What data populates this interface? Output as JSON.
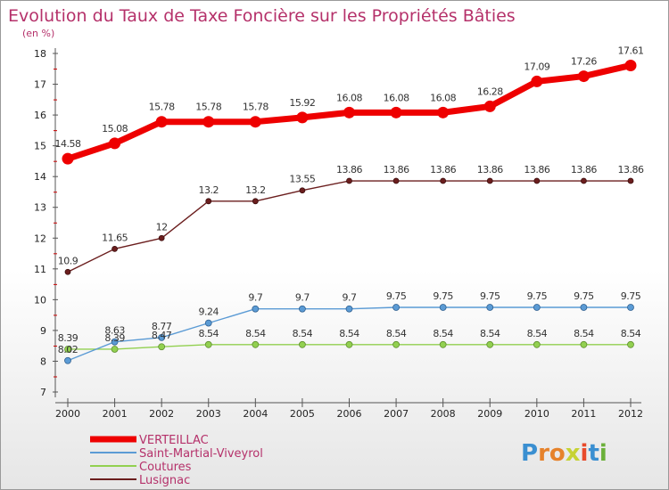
{
  "title": "Evolution du Taux de Taxe Foncière sur les Propriétés Bâties",
  "subtitle": "(en %)",
  "logo": "Proxiti",
  "colors": {
    "title": "#b5316a",
    "VERTEILLAC": "#ee0000",
    "Saint-Martial-Viveyrol": "#5b9bd5",
    "Coutures": "#92d050",
    "Lusignac": "#6b1e1e"
  },
  "chart_data": {
    "type": "line",
    "title": "Evolution du Taux de Taxe Foncière sur les Propriétés Bâties",
    "ylabel": "(en %)",
    "xlabel": "",
    "x": [
      "2000",
      "2001",
      "2002",
      "2003",
      "2004",
      "2005",
      "2006",
      "2007",
      "2008",
      "2009",
      "2010",
      "2011",
      "2012"
    ],
    "ylim": [
      7,
      18
    ],
    "yticks": [
      7,
      8,
      9,
      10,
      11,
      12,
      13,
      14,
      15,
      16,
      17,
      18
    ],
    "grid": false,
    "legend_position": "bottom-left",
    "series": [
      {
        "name": "VERTEILLAC",
        "values": [
          14.58,
          15.08,
          15.78,
          15.78,
          15.78,
          15.92,
          16.08,
          16.08,
          16.08,
          16.28,
          17.09,
          17.26,
          17.61
        ]
      },
      {
        "name": "Saint-Martial-Viveyrol",
        "values": [
          8.02,
          8.63,
          8.77,
          9.24,
          9.7,
          9.7,
          9.7,
          9.75,
          9.75,
          9.75,
          9.75,
          9.75,
          9.75
        ]
      },
      {
        "name": "Coutures",
        "values": [
          8.39,
          8.39,
          8.47,
          8.54,
          8.54,
          8.54,
          8.54,
          8.54,
          8.54,
          8.54,
          8.54,
          8.54,
          8.54
        ]
      },
      {
        "name": "Lusignac",
        "values": [
          10.9,
          11.65,
          12,
          13.2,
          13.2,
          13.55,
          13.86,
          13.86,
          13.86,
          13.86,
          13.86,
          13.86,
          13.86
        ]
      }
    ]
  }
}
